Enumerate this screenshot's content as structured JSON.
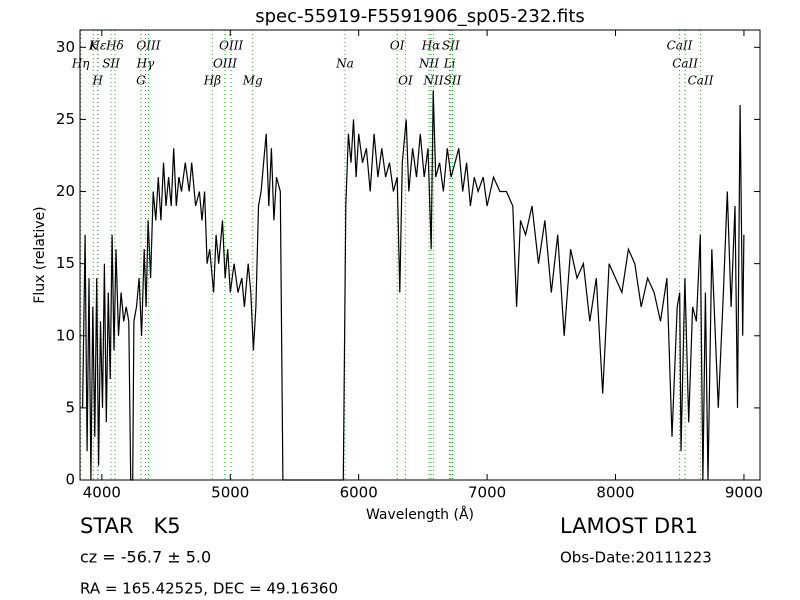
{
  "chart_data": {
    "type": "line",
    "title": "spec-55919-F5591906_sp05-232.fits",
    "x_label": "Wavelength (Å)",
    "y_label": "Flux (relative)",
    "xlim": [
      3830,
      9125
    ],
    "ylim": [
      0,
      31.2
    ],
    "xticks": [
      4000,
      5000,
      6000,
      7000,
      8000,
      9000
    ],
    "yticks": [
      0,
      5,
      10,
      15,
      20,
      25,
      30
    ],
    "series": [
      {
        "color": "#000000",
        "x": [
          3850,
          3870,
          3885,
          3900,
          3915,
          3930,
          3945,
          3960,
          3975,
          3990,
          4005,
          4020,
          4035,
          4050,
          4065,
          4080,
          4095,
          4110,
          4130,
          4150,
          4170,
          4190,
          4210,
          4225,
          4240,
          4250,
          4270,
          4290,
          4310,
          4330,
          4345,
          4360,
          4380,
          4400,
          4420,
          4440,
          4460,
          4480,
          4500,
          4520,
          4540,
          4560,
          4580,
          4600,
          4620,
          4650,
          4680,
          4700,
          4730,
          4760,
          4780,
          4800,
          4820,
          4840,
          4870,
          4890,
          4910,
          4940,
          4960,
          4980,
          5000,
          5030,
          5060,
          5090,
          5110,
          5140,
          5160,
          5180,
          5200,
          5220,
          5240,
          5260,
          5280,
          5300,
          5320,
          5340,
          5360,
          5390,
          5410,
          5880,
          5900,
          5920,
          5940,
          5960,
          5980,
          6000,
          6030,
          6060,
          6090,
          6120,
          6150,
          6180,
          6210,
          6240,
          6270,
          6300,
          6320,
          6340,
          6370,
          6390,
          6420,
          6450,
          6480,
          6510,
          6540,
          6565,
          6580,
          6600,
          6630,
          6660,
          6690,
          6720,
          6750,
          6780,
          6810,
          6840,
          6870,
          6900,
          6930,
          6970,
          7000,
          7050,
          7100,
          7150,
          7200,
          7230,
          7260,
          7300,
          7350,
          7400,
          7450,
          7500,
          7550,
          7600,
          7650,
          7700,
          7750,
          7800,
          7850,
          7900,
          7950,
          8000,
          8050,
          8100,
          8150,
          8200,
          8250,
          8300,
          8350,
          8400,
          8440,
          8480,
          8500,
          8510,
          8540,
          8570,
          8600,
          8630,
          8660,
          8680,
          8700,
          8720,
          8750,
          8800,
          8840,
          8870,
          8900,
          8930,
          8950,
          8970,
          8990,
          9000
        ],
        "values": [
          5,
          17,
          2,
          14,
          0,
          12,
          3,
          14,
          1,
          11,
          5,
          15,
          4,
          13,
          7,
          17,
          9,
          16,
          10,
          13,
          11,
          12,
          11,
          0,
          0,
          11,
          12,
          14,
          10,
          16,
          12,
          18,
          14,
          20,
          18,
          21,
          18,
          22,
          19,
          21,
          19,
          23,
          19,
          21,
          20,
          22,
          20,
          22,
          19,
          20,
          18,
          20,
          15,
          16,
          13,
          17,
          15,
          18,
          14,
          16,
          13,
          15,
          13,
          14,
          12,
          15,
          13,
          9,
          12,
          19,
          20,
          22,
          24,
          19,
          23,
          18,
          21,
          20,
          0,
          0,
          19,
          24,
          22,
          25,
          21,
          24,
          22,
          23,
          20,
          24,
          21,
          23,
          21,
          22,
          20,
          21,
          13,
          22,
          25,
          20,
          23,
          21,
          24,
          21,
          23,
          16,
          27,
          21,
          22,
          20,
          23,
          21,
          22,
          23,
          20,
          22,
          19,
          21,
          20,
          21,
          19,
          21,
          20,
          20,
          19,
          12,
          18,
          17,
          19,
          15,
          18,
          13,
          17,
          10,
          16,
          14,
          15,
          11,
          14,
          6,
          15,
          14,
          13,
          16,
          15,
          12,
          14,
          13,
          11,
          14,
          3,
          12,
          13,
          2,
          14,
          4,
          12,
          11,
          17,
          0,
          13,
          0,
          16,
          5,
          13,
          20,
          12,
          19,
          5,
          26,
          10,
          17
        ]
      }
    ],
    "line_markers": [
      {
        "label": "K",
        "x": 3934
      },
      {
        "label": "Hδ",
        "x": 4102
      },
      {
        "label": "OIII",
        "x": 4363
      },
      {
        "label": "OIII",
        "x": 5007
      },
      {
        "label": "OI",
        "x": 6300
      },
      {
        "label": "Hα",
        "x": 6563
      },
      {
        "label": "SII",
        "x": 6717
      },
      {
        "label": "CaII",
        "x": 8498
      },
      {
        "label": "Hε",
        "x": 3970
      },
      {
        "label": "SII",
        "x": 4072
      },
      {
        "label": "Hγ",
        "x": 4340
      },
      {
        "label": "OIII",
        "x": 4959
      },
      {
        "label": "Na",
        "x": 5893
      },
      {
        "label": "NII",
        "x": 6548
      },
      {
        "label": "Li",
        "x": 6708
      },
      {
        "label": "CaII",
        "x": 8542
      },
      {
        "label": "Hη",
        "x": 3835
      },
      {
        "label": "H",
        "x": 3968
      },
      {
        "label": "G",
        "x": 4304
      },
      {
        "label": "Hβ",
        "x": 4861
      },
      {
        "label": "Mg",
        "x": 5175
      },
      {
        "label": "OI",
        "x": 6364
      },
      {
        "label": "NII",
        "x": 6583
      },
      {
        "label": "SII",
        "x": 6731
      },
      {
        "label": "CaII",
        "x": 8662
      }
    ],
    "object_class": "STAR   K5",
    "redshift": "cz = -56.7 ± 5.0",
    "coordinates": "RA = 165.42525, DEC = 49.16360",
    "survey": "LAMOST DR1",
    "obs_date": "Obs-Date:20111223"
  }
}
